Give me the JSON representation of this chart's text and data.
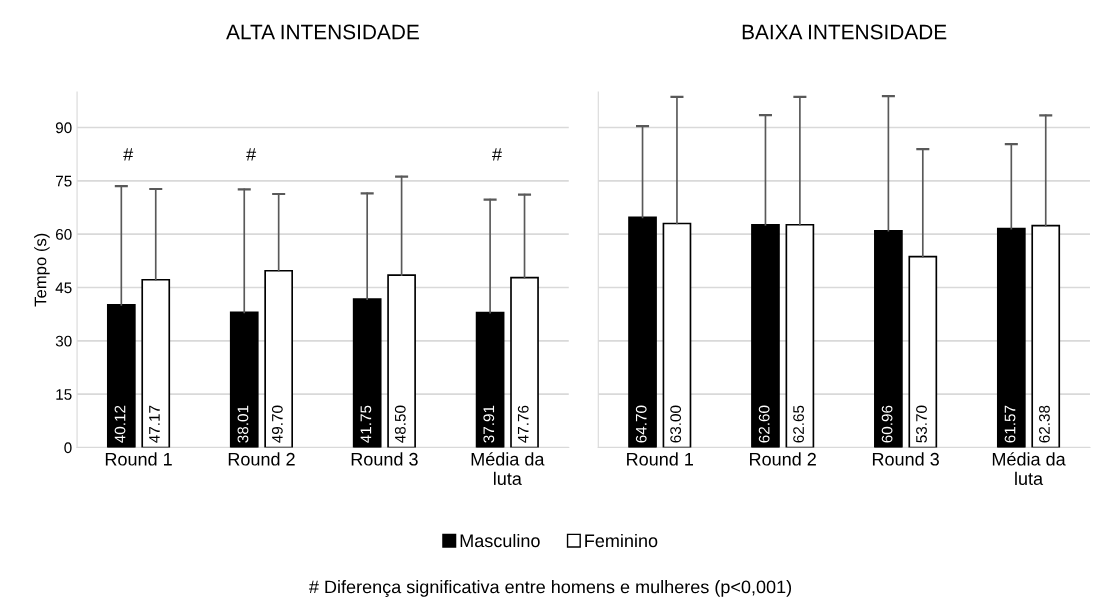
{
  "chart_data": [
    {
      "type": "bar",
      "title": "ALTA INTENSIDADE",
      "ylabel": "Tempo (s)",
      "categories": [
        "Round 1",
        "Round 2",
        "Round 3",
        "Média da\nluta"
      ],
      "series": [
        {
          "name": "Masculino",
          "color": "#000000",
          "values": [
            40.12,
            38.01,
            41.75,
            37.91
          ],
          "value_labels": [
            "40.12",
            "38.01",
            "41.75",
            "37.91"
          ],
          "errors": [
            [
              40.12,
              73.5
            ],
            [
              38.01,
              72.6
            ],
            [
              41.75,
              71.5
            ],
            [
              37.91,
              69.7
            ]
          ]
        },
        {
          "name": "Feminino",
          "color": "#ffffff",
          "values": [
            47.17,
            49.7,
            48.5,
            47.76
          ],
          "value_labels": [
            "47.17",
            "49.70",
            "48.50",
            "47.76"
          ],
          "errors": [
            [
              47.17,
              72.7
            ],
            [
              49.7,
              71.3
            ],
            [
              48.5,
              76.2
            ],
            [
              47.76,
              71.1
            ]
          ]
        }
      ],
      "ylim": [
        0,
        100
      ],
      "yticks": [
        0,
        15,
        30,
        45,
        60,
        75,
        90
      ],
      "grid": "y",
      "legend": "bottom",
      "annotations": [
        "#",
        "#",
        "#",
        "# Diferença significativa entre homens e mulheres (p<0,001)"
      ]
    },
    {
      "type": "bar",
      "title": "BAIXA INTENSIDADE",
      "categories": [
        "Round 1",
        "Round 2",
        "Round 3",
        "Média da\nluta"
      ],
      "series": [
        {
          "color": "#000000",
          "values": [
            64.7,
            62.6,
            60.96,
            61.57
          ],
          "value_labels": [
            "64.70",
            "62.60",
            "60.96",
            "61.57"
          ],
          "errors": [
            [
              64.7,
              90.4
            ],
            [
              62.6,
              93.5
            ],
            [
              60.96,
              98.8
            ],
            [
              61.57,
              85.3
            ]
          ]
        },
        {
          "color": "#ffffff",
          "values": [
            63.0,
            62.65,
            53.7,
            62.38
          ],
          "value_labels": [
            "63.00",
            "62.65",
            "53.70",
            "62.38"
          ],
          "errors": [
            [
              63.0,
              98.6
            ],
            [
              62.65,
              98.6
            ],
            [
              53.7,
              83.9
            ],
            [
              62.38,
              93.4
            ]
          ]
        }
      ],
      "ylim": [
        0,
        100
      ],
      "yticks": [
        0,
        15,
        30,
        45,
        60,
        75,
        90
      ],
      "grid": "y",
      "tick_labels": "x"
    }
  ]
}
